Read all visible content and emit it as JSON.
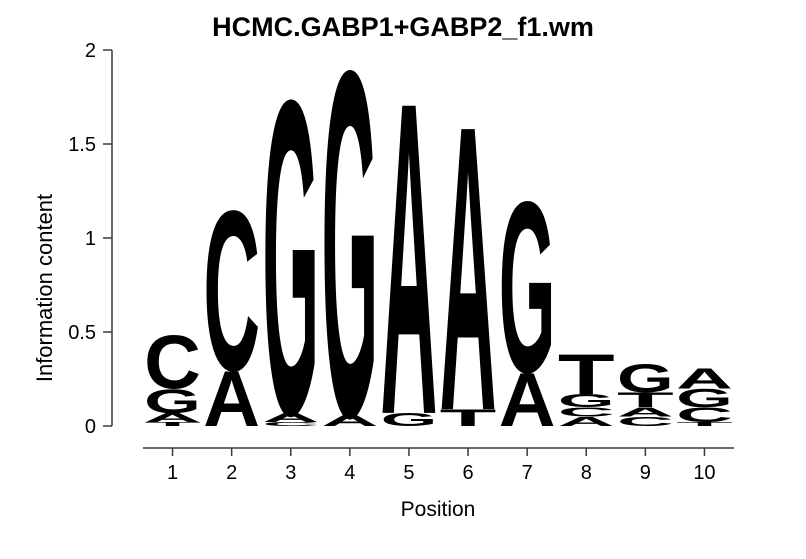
{
  "figure": {
    "title": "HCMC.GABP1+GABP2_f1.wm",
    "x_axis_label": "Position",
    "y_axis_label": "Information content"
  },
  "chart_data": {
    "type": "sequence_logo",
    "title": "HCMC.GABP1+GABP2_f1.wm",
    "xlabel": "Position",
    "ylabel": "Information content",
    "ylim": [
      0,
      2
    ],
    "yticks": [
      {
        "value": 0,
        "label": "0"
      },
      {
        "value": 0.5,
        "label": "0.5"
      },
      {
        "value": 1,
        "label": "1"
      },
      {
        "value": 1.5,
        "label": "1.5"
      },
      {
        "value": 2,
        "label": "2"
      }
    ],
    "x_positions": [
      "1",
      "2",
      "3",
      "4",
      "5",
      "6",
      "7",
      "8",
      "9",
      "10"
    ],
    "grid": false,
    "background": "#FFFFFF",
    "letter_colors": {
      "A": "#00CC00",
      "C": "#1414DC",
      "G": "#FFA500",
      "T": "#EE0000"
    },
    "stacks_top_to_bottom": [
      {
        "position": "1",
        "letters": [
          {
            "letter": "C",
            "height": 0.29
          },
          {
            "letter": "G",
            "height": 0.13
          },
          {
            "letter": "A",
            "height": 0.05
          },
          {
            "letter": "T",
            "height": 0.02
          }
        ]
      },
      {
        "position": "2",
        "letters": [
          {
            "letter": "C",
            "height": 0.87
          },
          {
            "letter": "A",
            "height": 0.3
          }
        ]
      },
      {
        "position": "3",
        "letters": [
          {
            "letter": "G",
            "height": 1.71
          },
          {
            "letter": "A",
            "height": 0.05
          },
          {
            "letter": "C",
            "height": 0.02
          }
        ]
      },
      {
        "position": "4",
        "letters": [
          {
            "letter": "G",
            "height": 1.88
          },
          {
            "letter": "A",
            "height": 0.06
          }
        ]
      },
      {
        "position": "5",
        "letters": [
          {
            "letter": "A",
            "height": 1.7
          },
          {
            "letter": "G",
            "height": 0.07
          }
        ]
      },
      {
        "position": "6",
        "letters": [
          {
            "letter": "A",
            "height": 1.55
          },
          {
            "letter": "T",
            "height": 0.09
          }
        ]
      },
      {
        "position": "7",
        "letters": [
          {
            "letter": "G",
            "height": 0.93
          },
          {
            "letter": "A",
            "height": 0.29
          }
        ]
      },
      {
        "position": "8",
        "letters": [
          {
            "letter": "T",
            "height": 0.22
          },
          {
            "letter": "G",
            "height": 0.07
          },
          {
            "letter": "C",
            "height": 0.05
          },
          {
            "letter": "A",
            "height": 0.05
          }
        ]
      },
      {
        "position": "9",
        "letters": [
          {
            "letter": "G",
            "height": 0.15
          },
          {
            "letter": "T",
            "height": 0.08
          },
          {
            "letter": "A",
            "height": 0.05
          },
          {
            "letter": "C",
            "height": 0.05
          }
        ]
      },
      {
        "position": "10",
        "letters": [
          {
            "letter": "A",
            "height": 0.11
          },
          {
            "letter": "G",
            "height": 0.1
          },
          {
            "letter": "C",
            "height": 0.08
          },
          {
            "letter": "T",
            "height": 0.02
          }
        ]
      }
    ]
  }
}
